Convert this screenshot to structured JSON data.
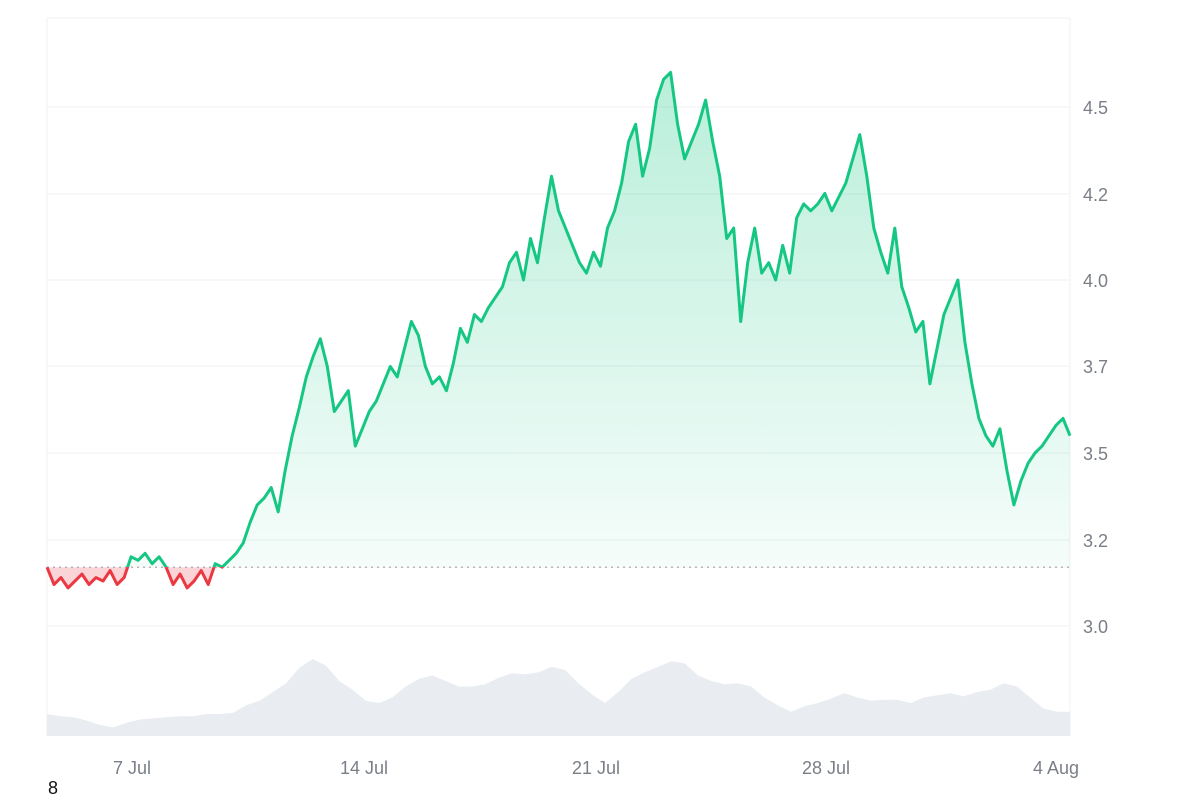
{
  "corner_label": "8",
  "chart_data": {
    "type": "area",
    "x_axis": {
      "ticks": [
        "7 Jul",
        "14 Jul",
        "21 Jul",
        "28 Jul",
        "4 Aug"
      ]
    },
    "y_axis": {
      "position": "right",
      "ticks": [
        3.0,
        3.2,
        3.5,
        3.7,
        4.0,
        4.2,
        4.5
      ]
    },
    "baseline": 3.17,
    "colors": {
      "up": "#16c784",
      "down": "#ea3943",
      "volume": "#e9ecf1",
      "grid": "#eef0f3",
      "baseline": "#9aa0a8"
    },
    "series": [
      {
        "values": [
          3.17,
          3.12,
          3.14,
          3.11,
          3.13,
          3.15,
          3.12,
          3.14,
          3.13,
          3.16,
          3.12,
          3.14,
          3.2,
          3.19,
          3.21,
          3.18,
          3.2,
          3.17,
          3.12,
          3.15,
          3.11,
          3.13,
          3.16,
          3.12,
          3.18,
          3.17,
          3.19,
          3.21,
          3.24,
          3.3,
          3.35,
          3.37,
          3.4,
          3.33,
          3.45,
          3.55,
          3.63,
          3.72,
          3.78,
          3.83,
          3.75,
          3.62,
          3.65,
          3.68,
          3.52,
          3.57,
          3.62,
          3.65,
          3.7,
          3.75,
          3.72,
          3.8,
          3.88,
          3.84,
          3.75,
          3.7,
          3.72,
          3.68,
          3.76,
          3.86,
          3.82,
          3.9,
          3.88,
          3.92,
          3.95,
          3.98,
          4.05,
          4.08,
          4.0,
          4.12,
          4.05,
          4.18,
          4.3,
          4.2,
          4.15,
          4.1,
          4.05,
          4.02,
          4.08,
          4.04,
          4.15,
          4.2,
          4.28,
          4.4,
          4.45,
          4.3,
          4.38,
          4.52,
          4.58,
          4.6,
          4.45,
          4.35,
          4.4,
          4.45,
          4.52,
          4.4,
          4.3,
          4.12,
          4.15,
          3.88,
          4.05,
          4.15,
          4.02,
          4.05,
          4.0,
          4.1,
          4.02,
          4.18,
          4.22,
          4.2,
          4.22,
          4.25,
          4.2,
          4.24,
          4.28,
          4.35,
          4.42,
          4.3,
          4.15,
          4.08,
          4.02,
          4.15,
          3.98,
          3.92,
          3.85,
          3.88,
          3.7,
          3.8,
          3.9,
          3.95,
          4.0,
          3.82,
          3.7,
          3.6,
          3.55,
          3.52,
          3.57,
          3.45,
          3.35,
          3.42,
          3.47,
          3.5,
          3.52,
          3.55,
          3.58,
          3.6,
          3.55
        ]
      }
    ],
    "volume": [
      0.2,
      0.18,
      0.17,
      0.14,
      0.1,
      0.08,
      0.12,
      0.15,
      0.16,
      0.17,
      0.18,
      0.18,
      0.2,
      0.2,
      0.21,
      0.28,
      0.32,
      0.4,
      0.48,
      0.62,
      0.7,
      0.64,
      0.5,
      0.42,
      0.32,
      0.3,
      0.35,
      0.45,
      0.52,
      0.55,
      0.5,
      0.45,
      0.45,
      0.47,
      0.53,
      0.57,
      0.56,
      0.58,
      0.63,
      0.6,
      0.48,
      0.38,
      0.3,
      0.4,
      0.52,
      0.58,
      0.63,
      0.68,
      0.66,
      0.55,
      0.5,
      0.47,
      0.48,
      0.45,
      0.35,
      0.28,
      0.22,
      0.27,
      0.3,
      0.34,
      0.39,
      0.35,
      0.32,
      0.33,
      0.33,
      0.3,
      0.35,
      0.37,
      0.39,
      0.36,
      0.4,
      0.42,
      0.48,
      0.45,
      0.35,
      0.25,
      0.22,
      0.22
    ]
  }
}
